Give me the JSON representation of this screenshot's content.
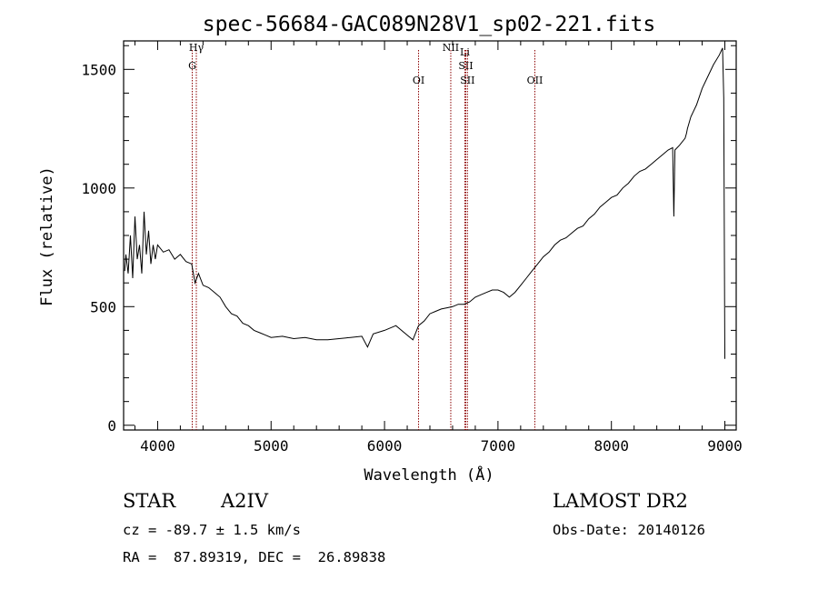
{
  "chart_data": {
    "type": "line",
    "title": "spec-56684-GAC089N28V1_sp02-221.fits",
    "xlabel": "Wavelength (Å)",
    "ylabel": "Flux (relative)",
    "xlim": [
      3700,
      9100
    ],
    "ylim": [
      -20,
      1620
    ],
    "x_ticks": [
      4000,
      5000,
      6000,
      7000,
      8000,
      9000
    ],
    "x_tick_labels": [
      "4000",
      "5000",
      "6000",
      "7000",
      "8000",
      "9000"
    ],
    "y_ticks": [
      0,
      500,
      1000,
      1500
    ],
    "y_tick_labels": [
      "0",
      "500",
      "1000",
      "1500"
    ],
    "grid": false,
    "legend": "none",
    "line_color": "#000000",
    "marker_color": "#8b0000",
    "series": [
      {
        "x": [
          3710,
          3720,
          3740,
          3760,
          3780,
          3800,
          3820,
          3840,
          3860,
          3880,
          3900,
          3920,
          3940,
          3960,
          3980,
          4000,
          4050,
          4100,
          4150,
          4200,
          4250,
          4300,
          4330,
          4360,
          4400,
          4450,
          4500,
          4550,
          4600,
          4650,
          4700,
          4750,
          4800,
          4850,
          4900,
          4950,
          5000,
          5100,
          5200,
          5300,
          5400,
          5500,
          5600,
          5700,
          5800,
          5850,
          5900,
          6000,
          6100,
          6200,
          6250,
          6300,
          6350,
          6400,
          6450,
          6500,
          6550,
          6600,
          6650,
          6700,
          6750,
          6800,
          6850,
          6900,
          6950,
          7000,
          7050,
          7100,
          7150,
          7200,
          7250,
          7300,
          7350,
          7400,
          7450,
          7500,
          7550,
          7600,
          7650,
          7700,
          7750,
          7800,
          7850,
          7900,
          7950,
          8000,
          8050,
          8100,
          8150,
          8200,
          8250,
          8300,
          8350,
          8400,
          8450,
          8500,
          8540,
          8550,
          8560,
          8600,
          8650,
          8662,
          8670,
          8700,
          8750,
          8800,
          8850,
          8900,
          8950,
          8980,
          8990,
          9000
        ],
        "y": [
          650,
          720,
          640,
          800,
          620,
          880,
          700,
          760,
          640,
          900,
          720,
          820,
          680,
          760,
          700,
          760,
          730,
          740,
          700,
          720,
          690,
          680,
          600,
          640,
          590,
          580,
          560,
          540,
          500,
          470,
          460,
          430,
          420,
          400,
          390,
          380,
          370,
          375,
          365,
          370,
          360,
          360,
          365,
          370,
          375,
          330,
          385,
          400,
          420,
          380,
          360,
          420,
          440,
          470,
          480,
          490,
          495,
          500,
          510,
          510,
          520,
          540,
          550,
          560,
          570,
          570,
          560,
          540,
          560,
          590,
          620,
          650,
          680,
          710,
          730,
          760,
          780,
          790,
          810,
          830,
          840,
          870,
          890,
          920,
          940,
          960,
          970,
          1000,
          1020,
          1050,
          1070,
          1080,
          1100,
          1120,
          1140,
          1160,
          1170,
          880,
          1160,
          1180,
          1210,
          1230,
          1250,
          1300,
          1350,
          1420,
          1470,
          1520,
          1560,
          1590,
          1380,
          280
        ]
      }
    ],
    "markers": [
      {
        "label": "Hγ",
        "wavelength": 4341
      },
      {
        "label": "G",
        "wavelength": 4305
      },
      {
        "label": "OI",
        "wavelength": 6300
      },
      {
        "label": "NII",
        "wavelength": 6584
      },
      {
        "label": "Li",
        "wavelength": 6708
      },
      {
        "label": "SII",
        "wavelength": 6716
      },
      {
        "label": "SII",
        "wavelength": 6731
      },
      {
        "label": "OII",
        "wavelength": 7325
      }
    ]
  },
  "info": {
    "object_class": "STAR",
    "subclass": "A2IV",
    "survey": "LAMOST DR2",
    "cz": "cz = -89.7 ± 1.5 km/s",
    "obs_date": "Obs-Date: 20140126",
    "coords": "RA =  87.89319, DEC =  26.89838"
  }
}
